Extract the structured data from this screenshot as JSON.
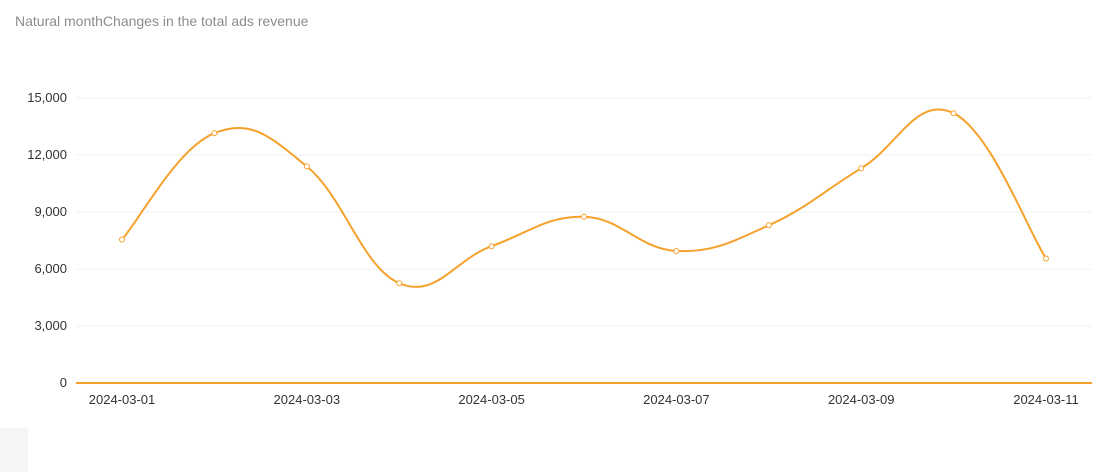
{
  "colors": {
    "series": "#f5a12c",
    "grid": "#f2f2f2",
    "text": "#333333",
    "title": "#8c8c8c"
  },
  "chart_data": {
    "type": "line",
    "title": "Natural monthChanges in the total ads revenue",
    "xlabel": "",
    "ylabel": "",
    "x": [
      "2024-03-01",
      "2024-03-02",
      "2024-03-03",
      "2024-03-04",
      "2024-03-05",
      "2024-03-06",
      "2024-03-07",
      "2024-03-08",
      "2024-03-09",
      "2024-03-10",
      "2024-03-11"
    ],
    "x_tick_labels": [
      "2024-03-01",
      "2024-03-03",
      "2024-03-05",
      "2024-03-07",
      "2024-03-09",
      "2024-03-11"
    ],
    "series": [
      {
        "values": [
          7550,
          13150,
          11400,
          5250,
          7200,
          8750,
          6950,
          8300,
          11300,
          14200,
          6550
        ]
      }
    ],
    "y_ticks": [
      0,
      3000,
      6000,
      9000,
      12000,
      15000
    ],
    "y_tick_labels": [
      "0",
      "3,000",
      "6,000",
      "9,000",
      "12,000",
      "15,000"
    ],
    "ylim": [
      0,
      15000
    ],
    "grid": true,
    "legend": "none",
    "smooth": true
  }
}
